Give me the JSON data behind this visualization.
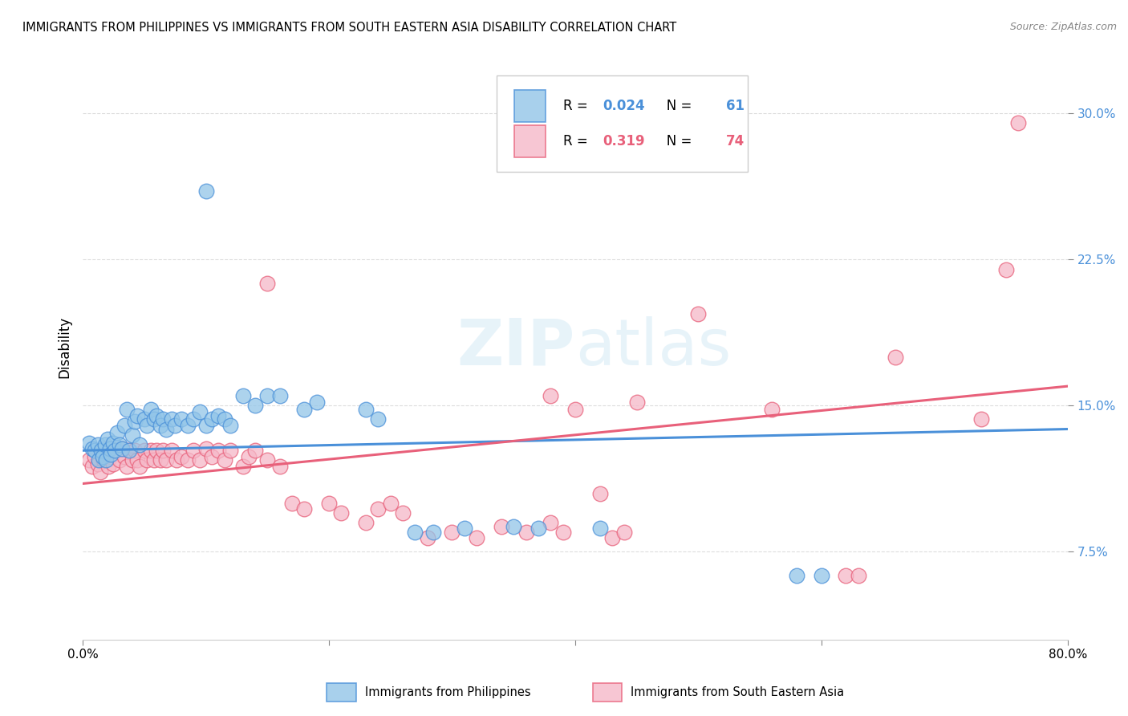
{
  "title": "IMMIGRANTS FROM PHILIPPINES VS IMMIGRANTS FROM SOUTH EASTERN ASIA DISABILITY CORRELATION CHART",
  "source": "Source: ZipAtlas.com",
  "ylabel": "Disability",
  "yticks": [
    0.075,
    0.15,
    0.225,
    0.3
  ],
  "ytick_labels": [
    "7.5%",
    "15.0%",
    "22.5%",
    "30.0%"
  ],
  "xlim": [
    0.0,
    0.8
  ],
  "ylim": [
    0.03,
    0.33
  ],
  "blue_R": "0.024",
  "blue_N": "61",
  "pink_R": "0.319",
  "pink_N": "74",
  "blue_color": "#92c5e8",
  "pink_color": "#f5b8c8",
  "blue_edge_color": "#4a90d9",
  "pink_edge_color": "#e8607a",
  "blue_line_color": "#4a90d9",
  "pink_line_color": "#e8607a",
  "ytick_color": "#4a90d9",
  "watermark": "ZIPatlas",
  "blue_points": [
    [
      0.005,
      0.131
    ],
    [
      0.008,
      0.128
    ],
    [
      0.01,
      0.127
    ],
    [
      0.012,
      0.13
    ],
    [
      0.013,
      0.122
    ],
    [
      0.015,
      0.127
    ],
    [
      0.016,
      0.124
    ],
    [
      0.018,
      0.13
    ],
    [
      0.019,
      0.122
    ],
    [
      0.02,
      0.133
    ],
    [
      0.022,
      0.128
    ],
    [
      0.023,
      0.125
    ],
    [
      0.025,
      0.131
    ],
    [
      0.026,
      0.127
    ],
    [
      0.028,
      0.136
    ],
    [
      0.03,
      0.13
    ],
    [
      0.032,
      0.128
    ],
    [
      0.034,
      0.14
    ],
    [
      0.036,
      0.148
    ],
    [
      0.038,
      0.127
    ],
    [
      0.04,
      0.135
    ],
    [
      0.042,
      0.142
    ],
    [
      0.044,
      0.145
    ],
    [
      0.046,
      0.13
    ],
    [
      0.05,
      0.143
    ],
    [
      0.052,
      0.14
    ],
    [
      0.055,
      0.148
    ],
    [
      0.058,
      0.143
    ],
    [
      0.06,
      0.145
    ],
    [
      0.063,
      0.14
    ],
    [
      0.065,
      0.143
    ],
    [
      0.068,
      0.138
    ],
    [
      0.072,
      0.143
    ],
    [
      0.075,
      0.14
    ],
    [
      0.08,
      0.143
    ],
    [
      0.085,
      0.14
    ],
    [
      0.09,
      0.143
    ],
    [
      0.095,
      0.147
    ],
    [
      0.1,
      0.14
    ],
    [
      0.105,
      0.143
    ],
    [
      0.11,
      0.145
    ],
    [
      0.115,
      0.143
    ],
    [
      0.12,
      0.14
    ],
    [
      0.13,
      0.155
    ],
    [
      0.14,
      0.15
    ],
    [
      0.15,
      0.155
    ],
    [
      0.16,
      0.155
    ],
    [
      0.18,
      0.148
    ],
    [
      0.19,
      0.152
    ],
    [
      0.23,
      0.148
    ],
    [
      0.24,
      0.143
    ],
    [
      0.27,
      0.085
    ],
    [
      0.285,
      0.085
    ],
    [
      0.31,
      0.087
    ],
    [
      0.35,
      0.088
    ],
    [
      0.37,
      0.087
    ],
    [
      0.42,
      0.087
    ],
    [
      0.58,
      0.063
    ],
    [
      0.6,
      0.063
    ],
    [
      0.1,
      0.26
    ]
  ],
  "pink_points": [
    [
      0.005,
      0.122
    ],
    [
      0.008,
      0.119
    ],
    [
      0.01,
      0.124
    ],
    [
      0.012,
      0.12
    ],
    [
      0.014,
      0.116
    ],
    [
      0.015,
      0.127
    ],
    [
      0.017,
      0.122
    ],
    [
      0.019,
      0.128
    ],
    [
      0.021,
      0.119
    ],
    [
      0.023,
      0.124
    ],
    [
      0.025,
      0.12
    ],
    [
      0.027,
      0.127
    ],
    [
      0.03,
      0.122
    ],
    [
      0.032,
      0.128
    ],
    [
      0.034,
      0.124
    ],
    [
      0.036,
      0.119
    ],
    [
      0.038,
      0.127
    ],
    [
      0.04,
      0.122
    ],
    [
      0.042,
      0.127
    ],
    [
      0.044,
      0.122
    ],
    [
      0.046,
      0.119
    ],
    [
      0.05,
      0.127
    ],
    [
      0.052,
      0.122
    ],
    [
      0.055,
      0.127
    ],
    [
      0.058,
      0.122
    ],
    [
      0.06,
      0.127
    ],
    [
      0.063,
      0.122
    ],
    [
      0.065,
      0.127
    ],
    [
      0.068,
      0.122
    ],
    [
      0.072,
      0.127
    ],
    [
      0.076,
      0.122
    ],
    [
      0.08,
      0.124
    ],
    [
      0.085,
      0.122
    ],
    [
      0.09,
      0.127
    ],
    [
      0.095,
      0.122
    ],
    [
      0.1,
      0.128
    ],
    [
      0.105,
      0.124
    ],
    [
      0.11,
      0.127
    ],
    [
      0.115,
      0.122
    ],
    [
      0.12,
      0.127
    ],
    [
      0.13,
      0.119
    ],
    [
      0.135,
      0.124
    ],
    [
      0.14,
      0.127
    ],
    [
      0.15,
      0.122
    ],
    [
      0.16,
      0.119
    ],
    [
      0.17,
      0.1
    ],
    [
      0.18,
      0.097
    ],
    [
      0.2,
      0.1
    ],
    [
      0.21,
      0.095
    ],
    [
      0.23,
      0.09
    ],
    [
      0.24,
      0.097
    ],
    [
      0.25,
      0.1
    ],
    [
      0.26,
      0.095
    ],
    [
      0.28,
      0.082
    ],
    [
      0.3,
      0.085
    ],
    [
      0.32,
      0.082
    ],
    [
      0.34,
      0.088
    ],
    [
      0.36,
      0.085
    ],
    [
      0.38,
      0.09
    ],
    [
      0.39,
      0.085
    ],
    [
      0.42,
      0.105
    ],
    [
      0.43,
      0.082
    ],
    [
      0.44,
      0.085
    ],
    [
      0.15,
      0.213
    ],
    [
      0.38,
      0.155
    ],
    [
      0.4,
      0.148
    ],
    [
      0.45,
      0.152
    ],
    [
      0.5,
      0.197
    ],
    [
      0.56,
      0.148
    ],
    [
      0.62,
      0.063
    ],
    [
      0.63,
      0.063
    ],
    [
      0.66,
      0.175
    ],
    [
      0.73,
      0.143
    ],
    [
      0.75,
      0.22
    ],
    [
      0.76,
      0.295
    ]
  ]
}
